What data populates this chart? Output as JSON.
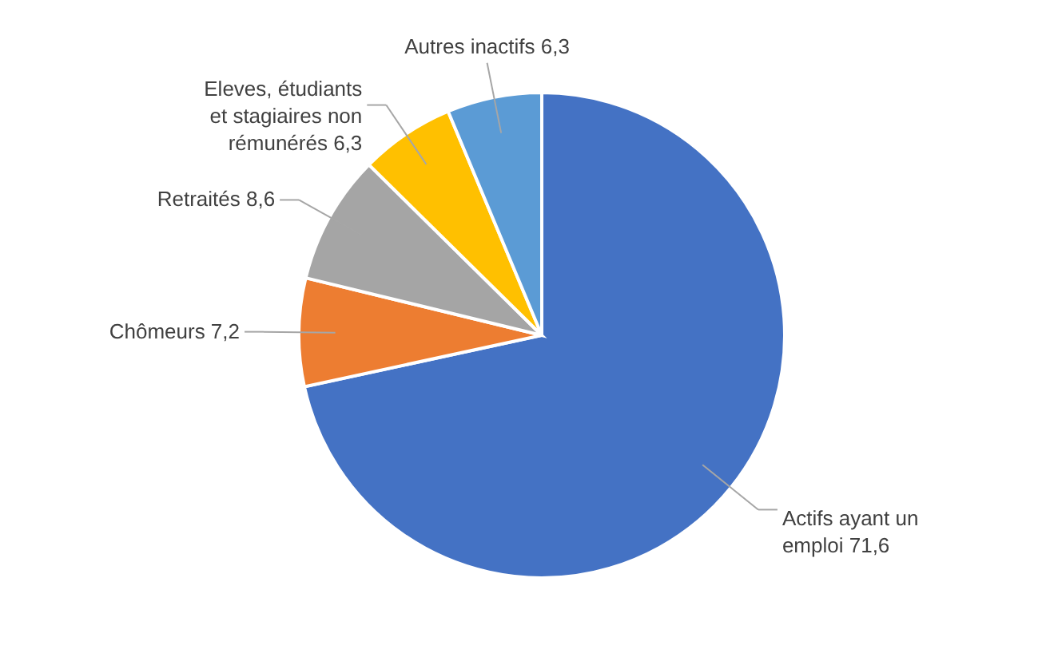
{
  "chart_data": {
    "type": "pie",
    "categories": [
      "Actifs ayant un emploi",
      "Chômeurs",
      "Retraités",
      "Eleves, étudiants et stagiaires non rémunérés",
      "Autres inactifs"
    ],
    "values": [
      71.6,
      7.2,
      8.6,
      6.3,
      6.3
    ],
    "value_labels": [
      "71,6",
      "7,2",
      "8,6",
      "6,3",
      "6,3"
    ],
    "colors": [
      "#4472c4",
      "#ed7d31",
      "#a5a5a5",
      "#ffc000",
      "#5b9bd5"
    ]
  }
}
